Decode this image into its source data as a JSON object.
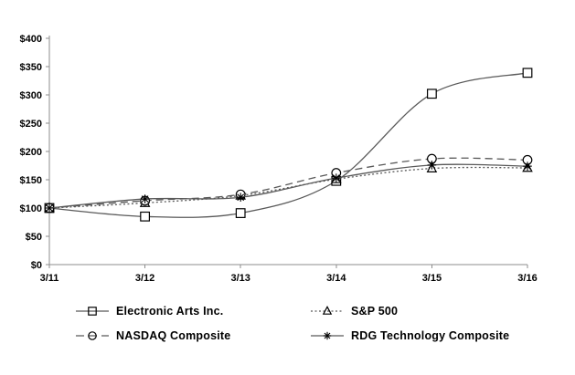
{
  "chart_data": {
    "type": "line",
    "title": "",
    "x_categories": [
      "3/11",
      "3/12",
      "3/13",
      "3/14",
      "3/15",
      "3/16"
    ],
    "series": [
      {
        "name": "Electronic Arts Inc.",
        "marker": "square",
        "line_style": "solid",
        "values": [
          100,
          85,
          91,
          148,
          302,
          339
        ]
      },
      {
        "name": "S&P 500",
        "marker": "triangle",
        "line_style": "dotted",
        "values": [
          100,
          109,
          122,
          151,
          170,
          171
        ]
      },
      {
        "name": "NASDAQ Composite",
        "marker": "circle",
        "line_style": "dashed",
        "values": [
          100,
          113,
          124,
          162,
          187,
          185
        ]
      },
      {
        "name": "RDG Technology Composite",
        "marker": "asterisk",
        "line_style": "solid",
        "values": [
          100,
          116,
          119,
          153,
          176,
          174
        ]
      }
    ],
    "xlabel": "",
    "ylabel": "",
    "ylim": [
      0,
      400
    ],
    "ytick_step": 50,
    "ytick_labels": [
      "$0",
      "$50",
      "$100",
      "$150",
      "$200",
      "$250",
      "$300",
      "$350",
      "$400"
    ],
    "grid": false,
    "legend_position": "bottom",
    "colors": {
      "line": "#595959",
      "marker_stroke": "#000000",
      "marker_fill": "#ffffff",
      "axis": "#8c8c8c",
      "text": "#000000",
      "background": "#ffffff"
    }
  }
}
